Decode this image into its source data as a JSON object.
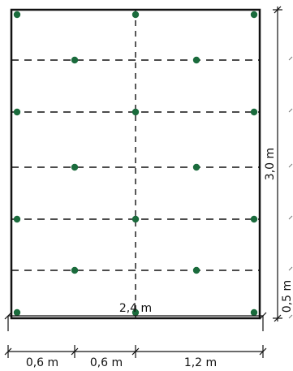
{
  "colors": {
    "outline": "#111111",
    "dashed_line": "#111111",
    "dot": "#1a6b3c",
    "dim_line": "#111111"
  },
  "dimensions": {
    "total_width": "2,4 m",
    "segment_1": "0,6 m",
    "segment_2": "0,6 m",
    "segment_3": "1,2 m",
    "height": "3,0 m",
    "bottom_spacing": "0,5 m"
  }
}
